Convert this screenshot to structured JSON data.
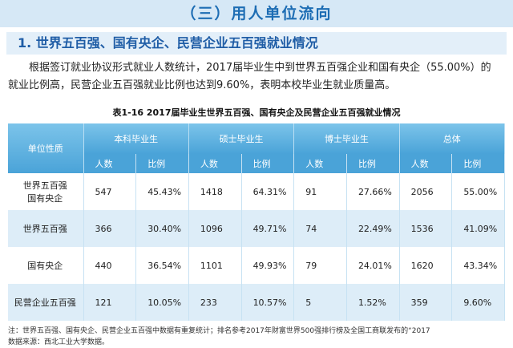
{
  "header": {
    "title": "（三）用人单位流向"
  },
  "section": {
    "title": "1.  世界五百强、国有央企、民营企业五百强就业情况"
  },
  "paragraph": "根据签订就业协议形式就业人数统计，2017届毕业生中到世界五百强企业和国有央企（55.00%）的就业比例高，民营企业五百强就业比例也达到9.60%，表明本校毕业生就业质量高。",
  "table": {
    "caption": "表1-16  2017届毕业生世界五百强、国有央企及民营企业五百强就业情况",
    "header": [
      "单位性质",
      "本科毕业生",
      "硕士毕业生",
      "博士毕业生",
      "总体"
    ],
    "subheader": [
      "人数",
      "比例",
      "人数",
      "比例",
      "人数",
      "比例",
      "人数",
      "比例"
    ],
    "rows": [
      [
        [
          "世界五百强",
          "国有央企"
        ],
        "547",
        "45.43%",
        "1418",
        "64.31%",
        "91",
        "27.66%",
        "2056",
        "55.00%"
      ],
      [
        [
          "世界五百强"
        ],
        "366",
        "30.40%",
        "1096",
        "49.71%",
        "74",
        "22.49%",
        "1536",
        "41.09%"
      ],
      [
        [
          "国有央企"
        ],
        "440",
        "36.54%",
        "1101",
        "49.93%",
        "79",
        "24.01%",
        "1620",
        "43.34%"
      ],
      [
        [
          "民营企业五百强"
        ],
        "121",
        "10.05%",
        "233",
        "10.57%",
        "5",
        "1.52%",
        "359",
        "9.60%"
      ]
    ]
  },
  "notes": [
    "注：世界五百强、国有央企、民营企业五百强中数据有重复统计；排名参考2017年财富世界500强排行榜及全国工商联发布的“2017",
    "数据来源：西北工业大学数据。"
  ]
}
